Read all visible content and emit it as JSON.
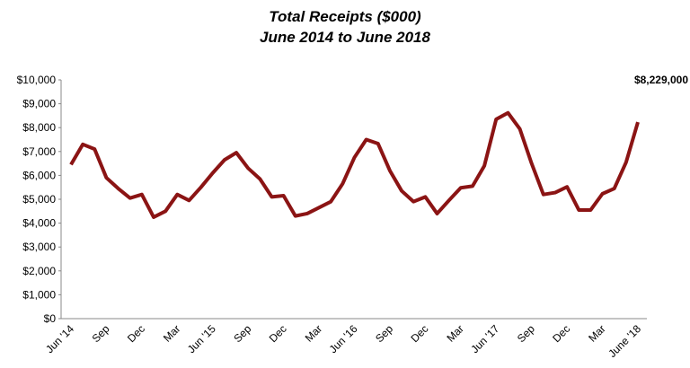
{
  "chart_data": {
    "type": "line",
    "title": "Total Receipts ($000)",
    "subtitle": "June 2014 to June 2018",
    "categories": [
      "Jun '14",
      null,
      null,
      "Sep",
      null,
      null,
      "Dec",
      null,
      null,
      "Mar",
      null,
      null,
      "Jun '15",
      null,
      null,
      "Sep",
      null,
      null,
      "Dec",
      null,
      null,
      "Mar",
      null,
      null,
      "Jun '16",
      null,
      null,
      "Sep",
      null,
      null,
      "Dec",
      null,
      null,
      "Mar",
      null,
      null,
      "Jun '17",
      null,
      null,
      "Sep",
      null,
      null,
      "Dec",
      null,
      null,
      "Mar",
      null,
      null,
      "June '18"
    ],
    "series": [
      {
        "name": "Total Receipts",
        "color": "#8b1414",
        "values": [
          6450,
          7300,
          7100,
          5900,
          5450,
          5050,
          5200,
          4250,
          4500,
          5200,
          4950,
          5500,
          6100,
          6650,
          6950,
          6300,
          5850,
          5100,
          5150,
          4300,
          4400,
          4650,
          4900,
          5650,
          6750,
          7500,
          7330,
          6200,
          5350,
          4900,
          5100,
          4400,
          4950,
          5480,
          5550,
          6400,
          8350,
          8620,
          7950,
          6500,
          5200,
          5280,
          5520,
          4550,
          4550,
          5230,
          5450,
          6550,
          8229
        ],
        "value_labels": [
          null,
          null,
          null,
          null,
          null,
          null,
          null,
          null,
          null,
          null,
          null,
          null,
          null,
          null,
          null,
          null,
          null,
          null,
          null,
          null,
          null,
          null,
          null,
          null,
          null,
          null,
          null,
          null,
          null,
          null,
          null,
          null,
          null,
          null,
          null,
          null,
          null,
          null,
          null,
          null,
          null,
          null,
          null,
          null,
          null,
          null,
          null,
          null,
          "$8,229,000"
        ]
      }
    ],
    "ylim": [
      0,
      10000
    ],
    "yticks": [
      {
        "value": 0,
        "label": "$0"
      },
      {
        "value": 1000,
        "label": "$1,000"
      },
      {
        "value": 2000,
        "label": "$2,000"
      },
      {
        "value": 3000,
        "label": "$3,000"
      },
      {
        "value": 4000,
        "label": "$4,000"
      },
      {
        "value": 5000,
        "label": "$5,000"
      },
      {
        "value": 6000,
        "label": "$6,000"
      },
      {
        "value": 7000,
        "label": "$7,000"
      },
      {
        "value": 8000,
        "label": "$8,000"
      },
      {
        "value": 9000,
        "label": "$9,000"
      },
      {
        "value": 10000,
        "label": "$10,000"
      }
    ],
    "grid": false
  }
}
